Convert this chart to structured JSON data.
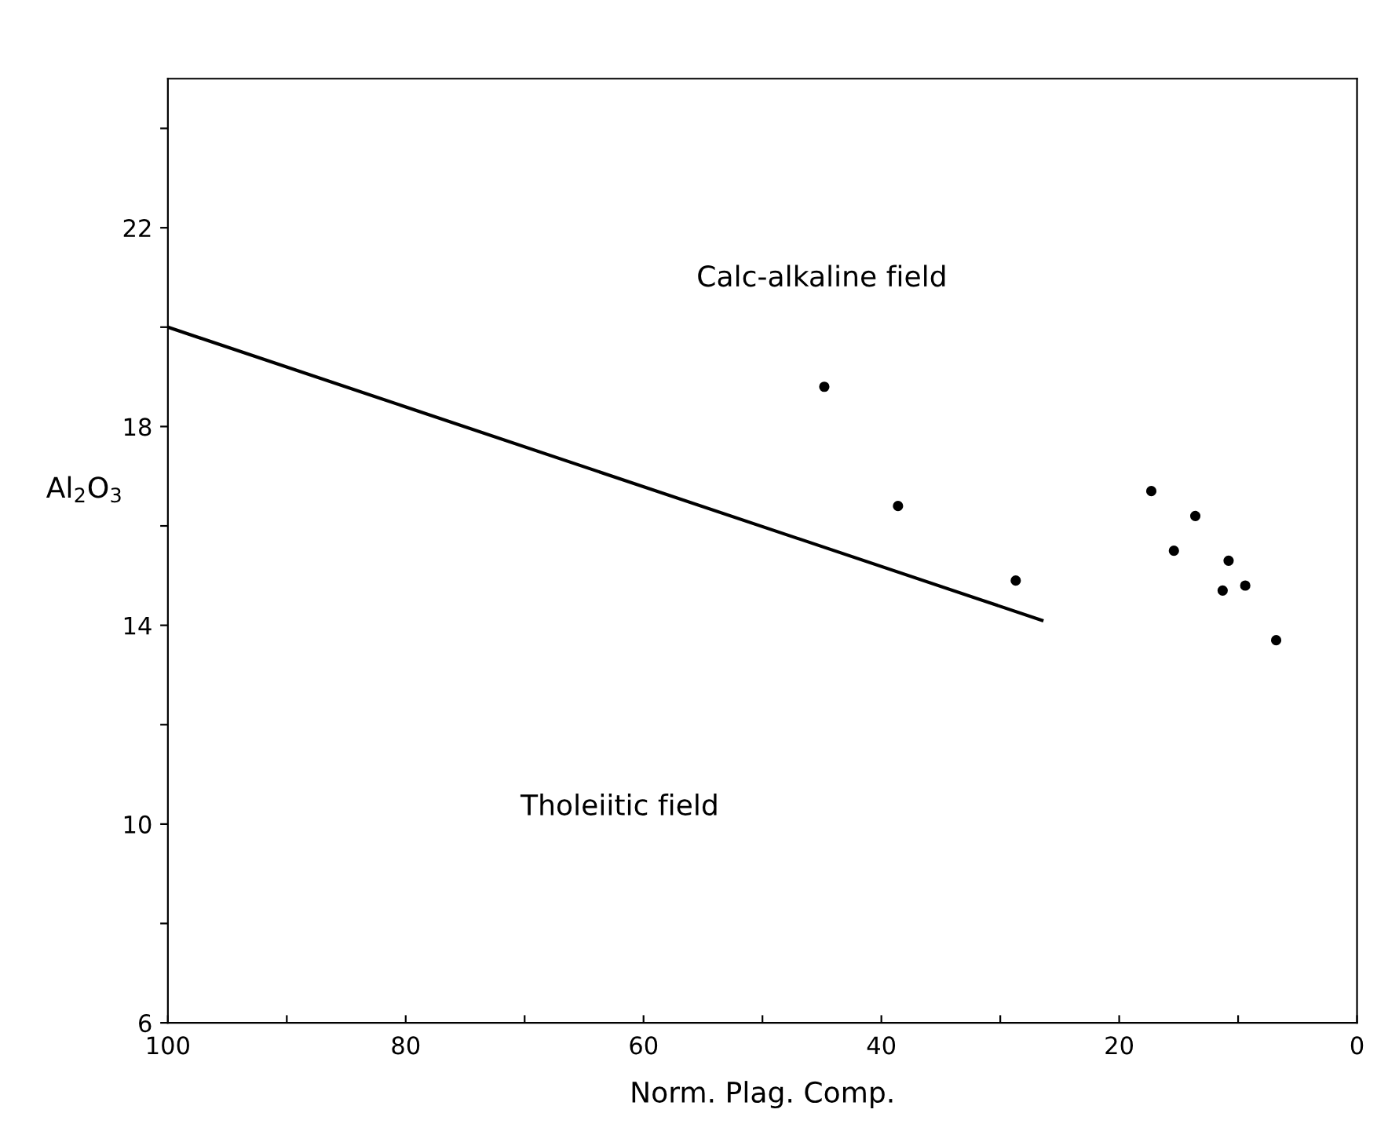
{
  "chart_data": {
    "type": "scatter",
    "xlabel": "Norm. Plag. Comp.",
    "ylabel": "Al$_{2}$O$_{3}$",
    "annotations": [
      "Calc-alkaline field",
      "Tholeiitic field"
    ],
    "xlim": [
      100,
      0
    ],
    "ylim": [
      6,
      25
    ],
    "xticks": [
      100,
      {
        "value": 90,
        "label": null
      },
      80,
      {
        "value": 70,
        "label": null
      },
      60,
      {
        "value": 50,
        "label": null
      },
      40,
      {
        "value": 30,
        "label": null
      },
      20,
      {
        "value": 10,
        "label": null
      },
      0
    ],
    "yticks": [
      6,
      {
        "value": 8,
        "label": null
      },
      10,
      {
        "value": 12,
        "label": null
      },
      14,
      {
        "value": 16,
        "label": null
      },
      18,
      {
        "value": 20,
        "label": null
      },
      22,
      {
        "value": 24,
        "label": null
      }
    ],
    "grid": false,
    "legend": false,
    "series": [
      {
        "type": "line",
        "color": "#000000",
        "marker": "none",
        "line_style": "solid",
        "x": [
          100,
          26.5
        ],
        "values": [
          20.0,
          14.1
        ]
      },
      {
        "color": "#000000",
        "marker": "circle",
        "x": [
          44.8,
          38.6,
          28.7,
          17.3,
          13.6,
          15.4,
          10.8,
          11.3,
          9.4,
          6.8
        ],
        "values": [
          18.8,
          16.4,
          14.9,
          16.7,
          16.2,
          15.5,
          15.3,
          14.7,
          14.8,
          13.7
        ]
      }
    ]
  }
}
